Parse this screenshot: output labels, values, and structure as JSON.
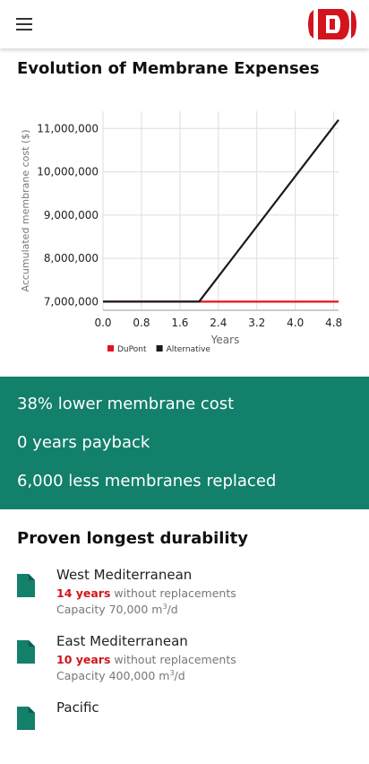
{
  "header": {
    "menu_icon": "hamburger-menu-icon",
    "logo": "dupont-oval-logo"
  },
  "chart_section": {
    "title": "Evolution of Membrane Expenses"
  },
  "chart_data": {
    "type": "line",
    "title": "",
    "xlabel": "Years",
    "ylabel": "Accumulated membrane cost ($)",
    "xlim": [
      0,
      4.9
    ],
    "ylim": [
      6800000,
      11400000
    ],
    "x_ticks": [
      "0.0",
      "0.8",
      "1.6",
      "2.4",
      "3.2",
      "4.0",
      "4.8"
    ],
    "y_ticks": [
      "7,000,000",
      "8,000,000",
      "9,000,000",
      "10,000,000",
      "11,000,000"
    ],
    "grid": true,
    "legend": "bottom-left",
    "series": [
      {
        "name": "DuPont",
        "color": "#e1131d",
        "x": [
          0,
          4.9
        ],
        "y": [
          7000000,
          7000000
        ]
      },
      {
        "name": "Alternative",
        "color": "#1a1a1a",
        "x": [
          0,
          2.0,
          4.9
        ],
        "y": [
          7000000,
          7000000,
          11200000
        ]
      }
    ]
  },
  "summary": {
    "items": [
      "38% lower membrane cost",
      "0 years payback",
      "6,000 less membranes replaced"
    ]
  },
  "durability": {
    "title": "Proven longest durability",
    "items": [
      {
        "region": "West Mediterranean",
        "years": "14 years",
        "rest": " without replacements",
        "capacity": "Capacity 70,000 m",
        "unit": "3",
        "suffix": "/d"
      },
      {
        "region": "East Mediterranean",
        "years": "10 years",
        "rest": " without replacements",
        "capacity": "Capacity 400,000 m",
        "unit": "3",
        "suffix": "/d"
      },
      {
        "region": "Pacific"
      }
    ]
  }
}
